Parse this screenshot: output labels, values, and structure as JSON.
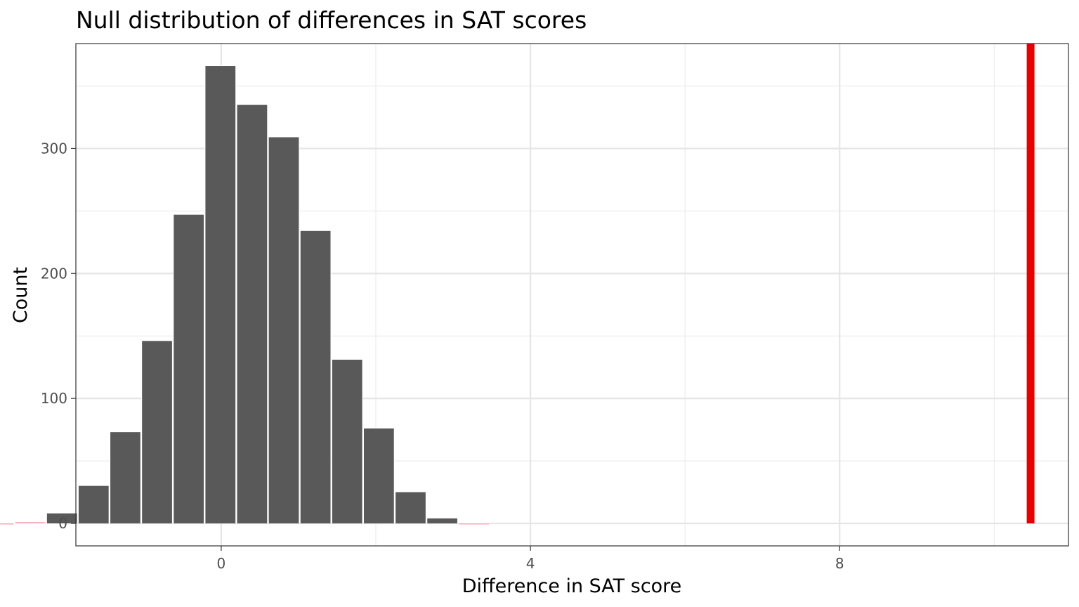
{
  "chart_data": {
    "type": "bar",
    "title": "Null distribution of differences in SAT scores",
    "xlabel": "Difference in SAT score",
    "ylabel": "Count",
    "xlim": [
      -1.88,
      10.96
    ],
    "ylim": [
      -18,
      384
    ],
    "x_ticks": [
      0,
      4,
      8
    ],
    "y_ticks": [
      0,
      100,
      200,
      300
    ],
    "bin_width": 0.41,
    "bins": [
      {
        "center": -2.88,
        "count": 0
      },
      {
        "center": -2.47,
        "count": 1
      },
      {
        "center": -2.06,
        "count": 8
      },
      {
        "center": -1.65,
        "count": 30
      },
      {
        "center": -1.24,
        "count": 73
      },
      {
        "center": -0.83,
        "count": 146
      },
      {
        "center": -0.42,
        "count": 247
      },
      {
        "center": -0.01,
        "count": 366
      },
      {
        "center": 0.4,
        "count": 335
      },
      {
        "center": 0.81,
        "count": 309
      },
      {
        "center": 1.22,
        "count": 234
      },
      {
        "center": 1.63,
        "count": 131
      },
      {
        "center": 2.04,
        "count": 76
      },
      {
        "center": 2.45,
        "count": 25
      },
      {
        "center": 2.86,
        "count": 4
      },
      {
        "center": 3.27,
        "count": 0
      }
    ],
    "observed_stat": 10.47,
    "observed_color": "#e60000",
    "bar_color": "#595959",
    "shade_color": "#f4a6b4",
    "grid": true,
    "legend": "none"
  }
}
